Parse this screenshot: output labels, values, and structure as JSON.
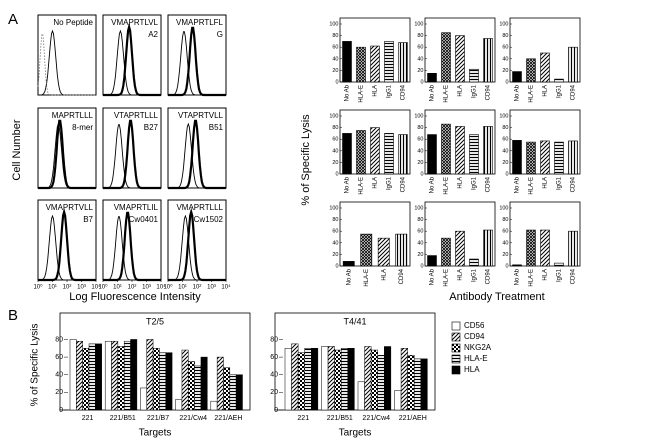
{
  "figure": {
    "panel_labels": [
      "A",
      "B"
    ]
  },
  "flow": {
    "ylabel": "Cell Number",
    "xlabel": "Log Fluorescence Intensity",
    "xticks": [
      {
        "value": 0,
        "label": "10⁰"
      },
      {
        "value": 1,
        "label": "10¹"
      },
      {
        "value": 2,
        "label": "10²"
      },
      {
        "value": 3,
        "label": "10³"
      },
      {
        "value": 4,
        "label": "10⁴"
      }
    ],
    "panels": [
      {
        "peptide": "No Peptide"
      },
      {
        "peptide": "VMAPRTLVL",
        "allele": "A2"
      },
      {
        "peptide": "VMAPRTLFL",
        "allele": "G"
      },
      {
        "peptide": "MAPRTLLL",
        "allele": "8-mer"
      },
      {
        "peptide": "VTAPRTLLL",
        "allele": "B27"
      },
      {
        "peptide": "VTAPRTVLL",
        "allele": "B51"
      },
      {
        "peptide": "VMAPRTVLL",
        "allele": "B7"
      },
      {
        "peptide": "VMAPRTLIL",
        "allele": "Cw0401"
      },
      {
        "peptide": "VMAPRTLLL",
        "allele": "Cw1502"
      }
    ]
  },
  "lysis_a": {
    "ylabel": "% of Specific Lysis",
    "xlabel": "Antibody Treatment"
  },
  "chart_data": [
    {
      "type": "bar",
      "categories": [
        "No Ab",
        "HLA-E",
        "HLA",
        "IgG1",
        "CD94"
      ],
      "values": [
        70,
        60,
        62,
        70,
        68
      ],
      "bar_patterns": [
        "black",
        "dots",
        "diag",
        "hstripe",
        "vstripe"
      ],
      "ylim": [
        0,
        100
      ],
      "yticks": [
        0,
        20,
        40,
        60,
        80,
        100
      ]
    },
    {
      "type": "bar",
      "categories": [
        "No Ab",
        "HLA-E",
        "HLA",
        "IgG1",
        "CD94"
      ],
      "values": [
        15,
        85,
        80,
        22,
        75
      ],
      "bar_patterns": [
        "black",
        "dots",
        "diag",
        "hstripe",
        "vstripe"
      ],
      "ylim": [
        0,
        100
      ],
      "yticks": [
        0,
        20,
        40,
        60,
        80,
        100
      ]
    },
    {
      "type": "bar",
      "categories": [
        "No Ab",
        "HLA-E",
        "HLA",
        "IgG1",
        "CD94"
      ],
      "values": [
        18,
        40,
        50,
        5,
        60
      ],
      "bar_patterns": [
        "black",
        "dots",
        "diag",
        "hstripe",
        "vstripe"
      ],
      "ylim": [
        0,
        100
      ],
      "yticks": [
        0,
        20,
        40,
        60,
        80,
        100
      ]
    },
    {
      "type": "bar",
      "categories": [
        "No Ab",
        "HLA-E",
        "HLA",
        "IgG1",
        "CD94"
      ],
      "values": [
        70,
        75,
        80,
        70,
        68
      ],
      "bar_patterns": [
        "black",
        "dots",
        "diag",
        "hstripe",
        "vstripe"
      ],
      "ylim": [
        0,
        100
      ],
      "yticks": [
        0,
        20,
        40,
        60,
        80,
        100
      ]
    },
    {
      "type": "bar",
      "categories": [
        "No Ab",
        "HLA-E",
        "HLA",
        "IgG1",
        "CD94"
      ],
      "values": [
        68,
        86,
        82,
        68,
        82
      ],
      "bar_patterns": [
        "black",
        "dots",
        "diag",
        "hstripe",
        "vstripe"
      ],
      "ylim": [
        0,
        100
      ],
      "yticks": [
        0,
        20,
        40,
        60,
        80,
        100
      ]
    },
    {
      "type": "bar",
      "categories": [
        "No Ab",
        "HLA-E",
        "HLA",
        "IgG1",
        "CD94"
      ],
      "values": [
        58,
        55,
        57,
        55,
        57
      ],
      "bar_patterns": [
        "black",
        "dots",
        "diag",
        "hstripe",
        "vstripe"
      ],
      "ylim": [
        0,
        100
      ],
      "yticks": [
        0,
        20,
        40,
        60,
        80,
        100
      ]
    },
    {
      "type": "bar",
      "categories": [
        "No Ab",
        "HLA-E",
        "HLA",
        "CD94"
      ],
      "values": [
        8,
        55,
        48,
        55
      ],
      "bar_patterns": [
        "black",
        "dots",
        "diag",
        "vstripe"
      ],
      "ylim": [
        0,
        100
      ],
      "yticks": [
        0,
        20,
        40,
        60,
        80,
        100
      ]
    },
    {
      "type": "bar",
      "categories": [
        "No Ab",
        "HLA-E",
        "HLA",
        "IgG1",
        "CD94"
      ],
      "values": [
        18,
        48,
        60,
        12,
        62
      ],
      "bar_patterns": [
        "black",
        "dots",
        "diag",
        "hstripe",
        "vstripe"
      ],
      "ylim": [
        0,
        100
      ],
      "yticks": [
        0,
        20,
        40,
        60,
        80,
        100
      ]
    },
    {
      "type": "bar",
      "categories": [
        "No Ab",
        "HLA-E",
        "HLA",
        "IgG1",
        "CD94"
      ],
      "values": [
        2,
        62,
        62,
        5,
        60
      ],
      "bar_patterns": [
        "black",
        "dots",
        "diag",
        "hstripe",
        "vstripe"
      ],
      "ylim": [
        0,
        100
      ],
      "yticks": [
        0,
        20,
        40,
        60,
        80,
        100
      ]
    },
    {
      "type": "grouped_bar",
      "title": "T2/5",
      "xlabel": "Targets",
      "ylabel": "% of Specific Lysis",
      "categories": [
        "221",
        "221/B51",
        "221/B7",
        "221/Cw4",
        "221/AEH"
      ],
      "series": [
        {
          "name": "CD56",
          "pattern": "white",
          "values": [
            80,
            78,
            25,
            12,
            10
          ]
        },
        {
          "name": "CD94",
          "pattern": "diag",
          "values": [
            78,
            78,
            80,
            68,
            60
          ]
        },
        {
          "name": "NKG2A",
          "pattern": "check",
          "values": [
            70,
            72,
            70,
            55,
            48
          ]
        },
        {
          "name": "HLA-E",
          "pattern": "hstripe",
          "values": [
            75,
            78,
            65,
            50,
            40
          ]
        },
        {
          "name": "HLA",
          "pattern": "black",
          "values": [
            75,
            80,
            65,
            60,
            40
          ]
        }
      ],
      "ylim": [
        0,
        110
      ],
      "yticks": [
        0,
        20,
        40,
        60,
        80
      ]
    },
    {
      "type": "grouped_bar",
      "title": "T4/41",
      "xlabel": "Targets",
      "categories": [
        "221",
        "221/B51",
        "221/Cw4",
        "221/AEH"
      ],
      "series": [
        {
          "name": "CD56",
          "pattern": "white",
          "values": [
            70,
            72,
            32,
            22
          ]
        },
        {
          "name": "CD94",
          "pattern": "diag",
          "values": [
            75,
            72,
            72,
            70
          ]
        },
        {
          "name": "NKG2A",
          "pattern": "check",
          "values": [
            65,
            68,
            68,
            62
          ]
        },
        {
          "name": "HLA-E",
          "pattern": "hstripe",
          "values": [
            70,
            70,
            62,
            58
          ]
        },
        {
          "name": "HLA",
          "pattern": "black",
          "values": [
            70,
            70,
            72,
            58
          ]
        }
      ],
      "ylim": [
        0,
        110
      ],
      "yticks": [
        0,
        20,
        40,
        60,
        80
      ]
    }
  ]
}
